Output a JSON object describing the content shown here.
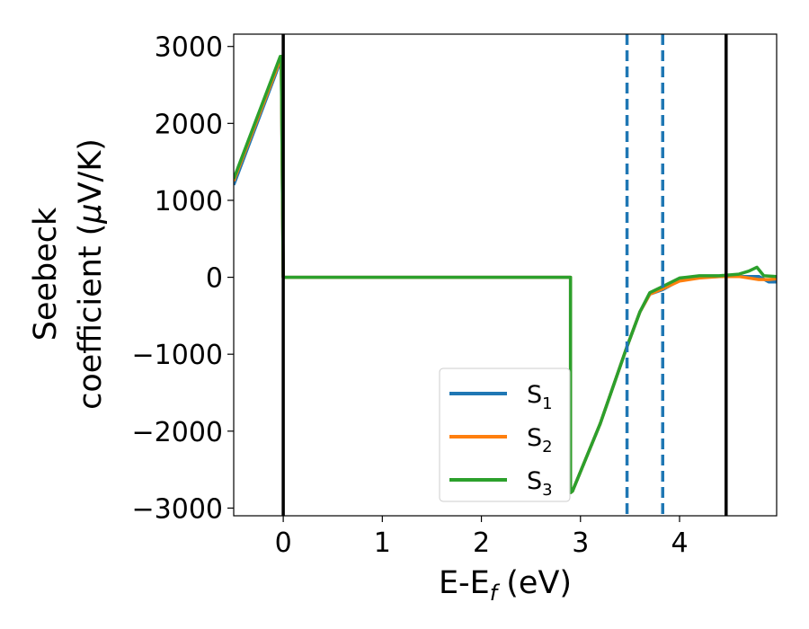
{
  "chart_data": {
    "type": "line",
    "title": "",
    "xlabel": "E-E",
    "xlabel_sub": "f",
    "xlabel_unit": "(eV)",
    "ylabel_line1": "Seebeck",
    "ylabel_line2": "coefficient  (",
    "ylabel_mu": "μ",
    "ylabel_unit": "V/K)",
    "xlim": [
      -0.5,
      4.98
    ],
    "ylim": [
      -3100,
      3160
    ],
    "xticks": [
      0,
      1,
      2,
      3,
      4
    ],
    "xtick_labels": [
      "0",
      "1",
      "2",
      "3",
      "4"
    ],
    "yticks": [
      3000,
      2000,
      1000,
      0,
      -1000,
      -2000,
      -3000
    ],
    "ytick_labels": [
      "3000",
      "2000",
      "1000",
      "0",
      "−1000",
      "−2000",
      "−3000"
    ],
    "grid": false,
    "legend_position": "lower-center",
    "vlines_solid": [
      0.0,
      4.47
    ],
    "vlines_dashed": [
      3.47,
      3.83
    ],
    "colors": {
      "s1": "#1f77b4",
      "s2": "#ff7f0e",
      "s3": "#2ca02c",
      "solid_vline": "#000000",
      "dashed_vline": "#1f77b4"
    },
    "series": [
      {
        "name": "S",
        "sub": "1",
        "color": "#1f77b4",
        "x": [
          -0.5,
          -0.03,
          -0.02,
          0.0,
          2.9,
          2.9,
          2.92,
          3.2,
          3.47,
          3.6,
          3.7,
          3.83,
          4.0,
          4.2,
          4.4,
          4.6,
          4.8,
          4.9,
          4.98
        ],
        "y": [
          1200,
          2800,
          2800,
          0,
          0,
          -2800,
          -2780,
          -1900,
          -900,
          -450,
          -220,
          -160,
          -40,
          0,
          10,
          10,
          10,
          -60,
          -60
        ]
      },
      {
        "name": "S",
        "sub": "2",
        "color": "#ff7f0e",
        "x": [
          -0.5,
          -0.03,
          -0.02,
          0.0,
          2.9,
          2.9,
          2.92,
          3.2,
          3.47,
          3.6,
          3.7,
          3.83,
          4.0,
          4.2,
          4.4,
          4.6,
          4.8,
          4.9,
          4.98
        ],
        "y": [
          1250,
          2830,
          2830,
          0,
          0,
          -2800,
          -2780,
          -1900,
          -900,
          -450,
          -220,
          -150,
          -50,
          -10,
          10,
          10,
          -30,
          -30,
          -20
        ]
      },
      {
        "name": "S",
        "sub": "3",
        "color": "#2ca02c",
        "x": [
          -0.5,
          -0.03,
          -0.02,
          0.0,
          2.9,
          2.9,
          2.92,
          3.2,
          3.47,
          3.6,
          3.7,
          3.83,
          4.0,
          4.2,
          4.4,
          4.6,
          4.7,
          4.78,
          4.85,
          4.98
        ],
        "y": [
          1280,
          2870,
          2870,
          0,
          0,
          -2800,
          -2780,
          -1900,
          -900,
          -450,
          -200,
          -120,
          -10,
          20,
          20,
          40,
          80,
          130,
          20,
          10
        ]
      }
    ]
  }
}
